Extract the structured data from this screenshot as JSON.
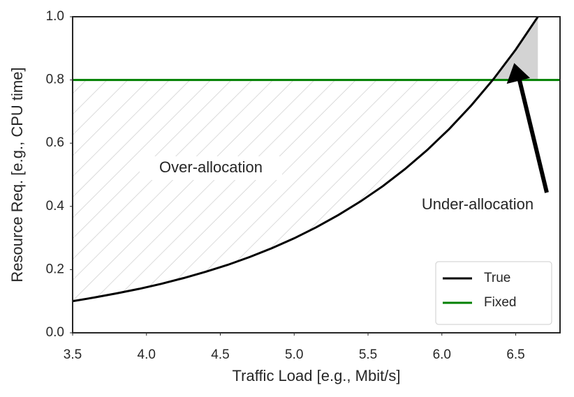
{
  "chart_data": {
    "type": "line",
    "xlabel": "Traffic Load [e.g., Mbit/s]",
    "ylabel": "Resource Req. [e.g., CPU time]",
    "xlim": [
      3.5,
      6.8
    ],
    "ylim": [
      0,
      1
    ],
    "xticks": [
      3.5,
      {
        "value": 4,
        "label": "4.0"
      },
      4.5,
      {
        "value": 5,
        "label": "5.0"
      },
      5.5,
      {
        "value": 6,
        "label": "6.0"
      },
      6.5
    ],
    "yticks": [
      {
        "value": 0,
        "label": "0.0"
      },
      0.2,
      0.4,
      0.6,
      0.8,
      {
        "value": 1,
        "label": "1.0"
      }
    ],
    "series": [
      {
        "name": "True",
        "color": "#000000",
        "x": [
          3.5,
          3.65,
          3.8,
          3.95,
          4.1,
          4.25,
          4.4,
          4.55,
          4.7,
          4.85,
          5.0,
          5.15,
          5.3,
          5.45,
          5.6,
          5.75,
          5.9,
          6.05,
          6.2,
          6.35,
          6.5,
          6.65
        ],
        "values": [
          0.1,
          0.112,
          0.125,
          0.139,
          0.155,
          0.173,
          0.193,
          0.215,
          0.24,
          0.268,
          0.299,
          0.334,
          0.373,
          0.416,
          0.464,
          0.518,
          0.578,
          0.645,
          0.72,
          0.803,
          0.896,
          1.0
        ]
      },
      {
        "name": "Fixed",
        "color": "#008000",
        "x": [
          3.5,
          6.8
        ],
        "values": [
          0.8,
          0.8
        ]
      }
    ],
    "annotations": [
      "Over-allocation",
      "Under-allocation"
    ],
    "legend": "lower right"
  }
}
